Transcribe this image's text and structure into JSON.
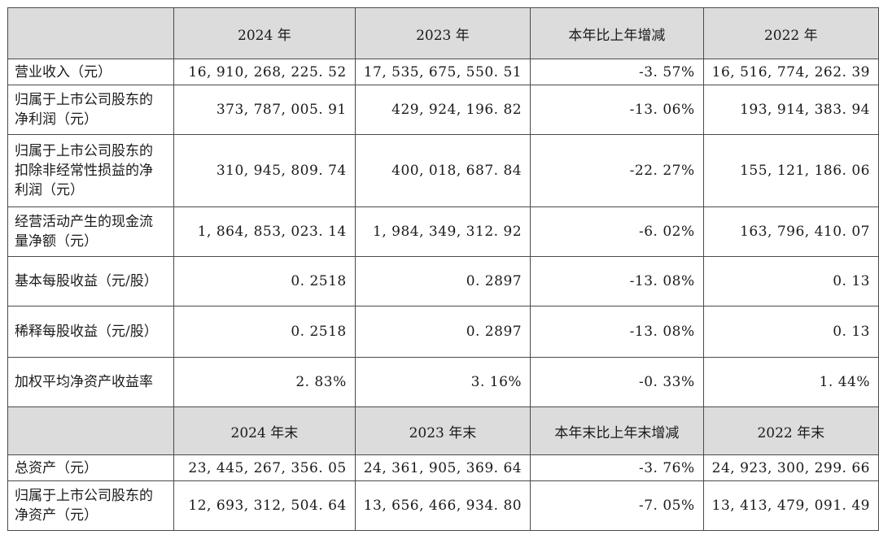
{
  "header_period": {
    "columns": [
      "2024 年",
      "2023 年",
      "本年比上年增减",
      "2022 年"
    ]
  },
  "rows_period": [
    {
      "label": "营业收入（元）",
      "values": [
        "16, 910, 268, 225. 52",
        "17, 535, 675, 550. 51",
        "-3. 57%",
        "16, 516, 774, 262. 39"
      ]
    },
    {
      "label": "归属于上市公司股东的净利润（元）",
      "values": [
        "373, 787, 005. 91",
        "429, 924, 196. 82",
        "-13. 06%",
        "193, 914, 383. 94"
      ]
    },
    {
      "label": "归属于上市公司股东的扣除非经常性损益的净利润（元）",
      "values": [
        "310, 945, 809. 74",
        "400, 018, 687. 84",
        "-22. 27%",
        "155, 121, 186. 06"
      ]
    },
    {
      "label": "经营活动产生的现金流量净额（元）",
      "values": [
        "1, 864, 853, 023. 14",
        "1, 984, 349, 312. 92",
        "-6. 02%",
        "163, 796, 410. 07"
      ]
    },
    {
      "label": "基本每股收益（元/股）",
      "values": [
        "0. 2518",
        "0. 2897",
        "-13. 08%",
        "0. 13"
      ]
    },
    {
      "label": "稀释每股收益（元/股）",
      "values": [
        "0. 2518",
        "0. 2897",
        "-13. 08%",
        "0. 13"
      ]
    },
    {
      "label": "加权平均净资产收益率",
      "values": [
        "2. 83%",
        "3. 16%",
        "-0. 33%",
        "1. 44%"
      ]
    }
  ],
  "header_end": {
    "columns": [
      "2024 年末",
      "2023 年末",
      "本年末比上年末增减",
      "2022 年末"
    ]
  },
  "rows_end": [
    {
      "label": "总资产（元）",
      "values": [
        "23, 445, 267, 356. 05",
        "24, 361, 905, 369. 64",
        "-3. 76%",
        "24, 923, 300, 299. 66"
      ]
    },
    {
      "label": "归属于上市公司股东的净资产（元）",
      "values": [
        "12, 693, 312, 504. 64",
        "13, 656, 466, 934. 80",
        "-7. 05%",
        "13, 413, 479, 091. 49"
      ]
    }
  ]
}
